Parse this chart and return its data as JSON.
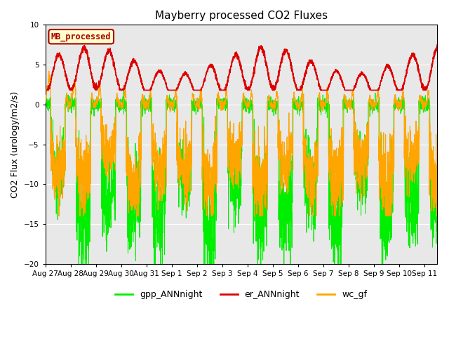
{
  "title": "Mayberry processed CO2 Fluxes",
  "ylabel": "CO2 Flux (urology/m2/s)",
  "ylim": [
    -20,
    10
  ],
  "yticks": [
    -20,
    -15,
    -10,
    -5,
    0,
    5,
    10
  ],
  "background_color": "#e8e8e8",
  "fig_background": "#ffffff",
  "legend_label": "MB_processed",
  "legend_box_color": "#ffffcc",
  "legend_box_edge": "#aa0000",
  "legend_text_color": "#aa0000",
  "gpp_color": "#00ee00",
  "er_color": "#dd0000",
  "wc_color": "#ffa500",
  "n_days": 15.5,
  "tick_labels": [
    "Aug 27",
    "Aug 28",
    "Aug 29",
    "Aug 30",
    "Aug 31",
    "Sep 1",
    "Sep 2",
    "Sep 3",
    "Sep 4",
    "Sep 5",
    "Sep 6",
    "Sep 7",
    "Sep 8",
    "Sep 9",
    "Sep 10",
    "Sep 11"
  ]
}
